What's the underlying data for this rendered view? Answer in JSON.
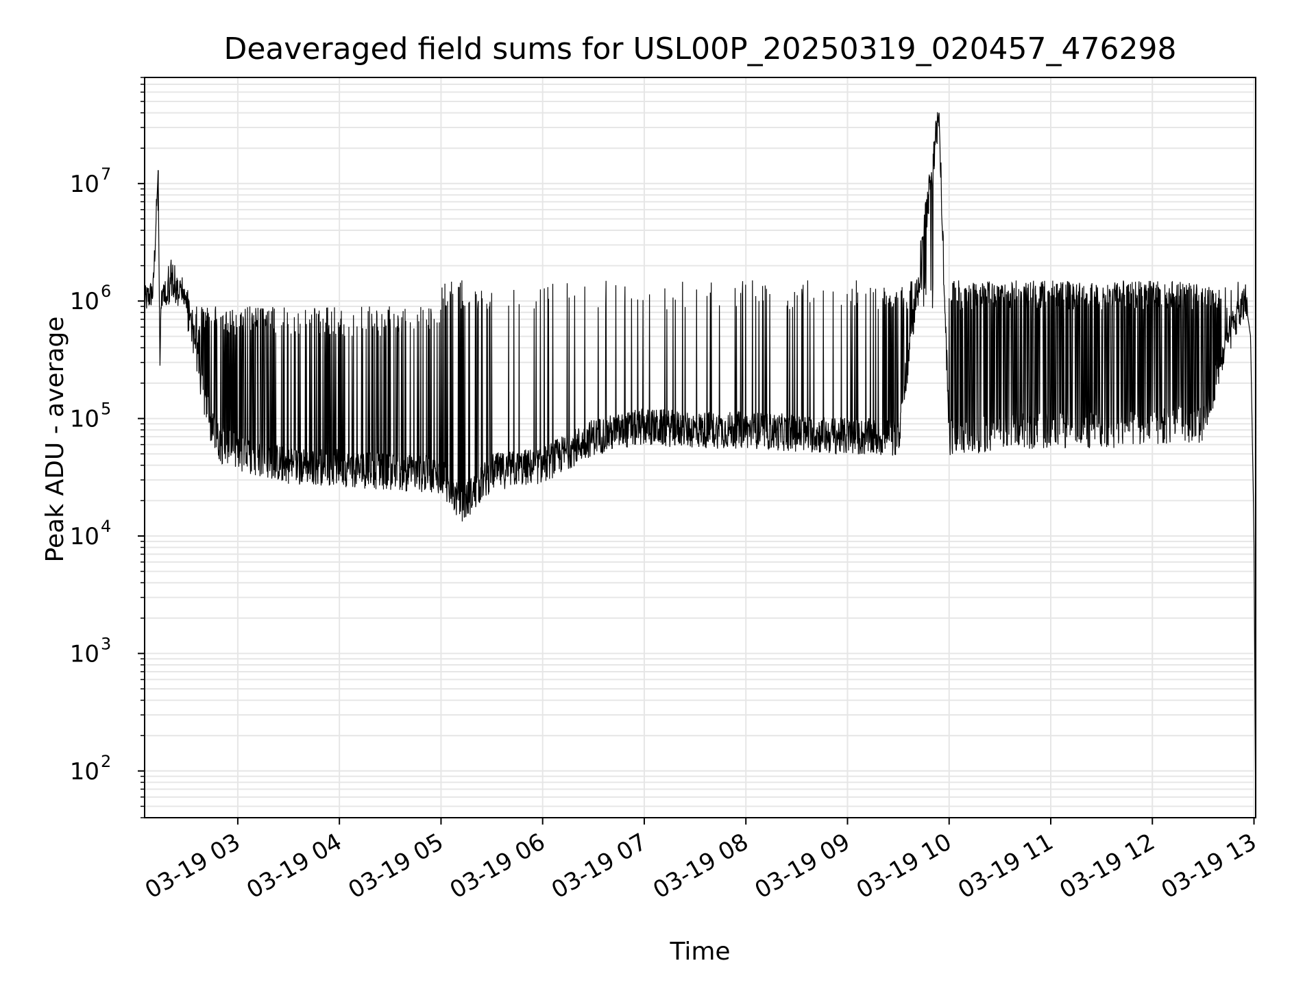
{
  "chart_data": {
    "type": "line",
    "title": "Deaveraged field sums for USL00P_20250319_020457_476298",
    "xlabel": "Time",
    "ylabel": "Peak ADU - average",
    "yscale": "log",
    "ylim": [
      40,
      80000000
    ],
    "xlim": [
      "03-19 02:05",
      "03-19 13:01"
    ],
    "grid": true,
    "line_color": "#000000",
    "grid_color": "#e6e6e6",
    "x_ticks": [
      "03-19 03",
      "03-19 04",
      "03-19 05",
      "03-19 06",
      "03-19 07",
      "03-19 08",
      "03-19 09",
      "03-19 10",
      "03-19 11",
      "03-19 12",
      "03-19 13"
    ],
    "y_ticks": [
      {
        "value": 100,
        "base": "10",
        "exp": "2"
      },
      {
        "value": 1000,
        "base": "10",
        "exp": "3"
      },
      {
        "value": 10000,
        "base": "10",
        "exp": "4"
      },
      {
        "value": 100000,
        "base": "10",
        "exp": "5"
      },
      {
        "value": 1000000,
        "base": "10",
        "exp": "6"
      },
      {
        "value": 10000000,
        "base": "10",
        "exp": "7"
      }
    ],
    "series": [
      {
        "x": [
          "03-19 02:05",
          "03-19 02:10",
          "03-19 02:13",
          "03-19 02:14",
          "03-19 02:15",
          "03-19 02:20",
          "03-19 02:25",
          "03-19 02:30",
          "03-19 02:35",
          "03-19 02:40",
          "03-19 02:45",
          "03-19 02:50",
          "03-19 03:00",
          "03-19 03:15",
          "03-19 03:30",
          "03-19 04:00",
          "03-19 04:30",
          "03-19 05:00",
          "03-19 05:12",
          "03-19 05:30",
          "03-19 06:00",
          "03-19 06:30",
          "03-19 07:00",
          "03-19 07:30",
          "03-19 08:00",
          "03-19 08:30",
          "03-19 09:00",
          "03-19 09:30",
          "03-19 09:54",
          "03-19 10:00",
          "03-19 10:30",
          "03-19 11:00",
          "03-19 11:30",
          "03-19 12:00",
          "03-19 12:30",
          "03-19 12:45",
          "03-19 12:55",
          "03-19 12:58",
          "03-19 13:00",
          "03-19 13:01"
        ],
        "y": [
          1000000,
          1200000,
          13000000,
          300000,
          1200000,
          1600000,
          1300000,
          1000000,
          400000,
          150000,
          80000,
          60000,
          50000,
          45000,
          40000,
          38000,
          35000,
          33000,
          18000,
          35000,
          40000,
          70000,
          85000,
          80000,
          80000,
          75000,
          70000,
          68000,
          40000000,
          70000,
          75000,
          80000,
          80000,
          85000,
          90000,
          500000,
          1000000,
          500000,
          10000,
          40
        ]
      }
    ]
  }
}
